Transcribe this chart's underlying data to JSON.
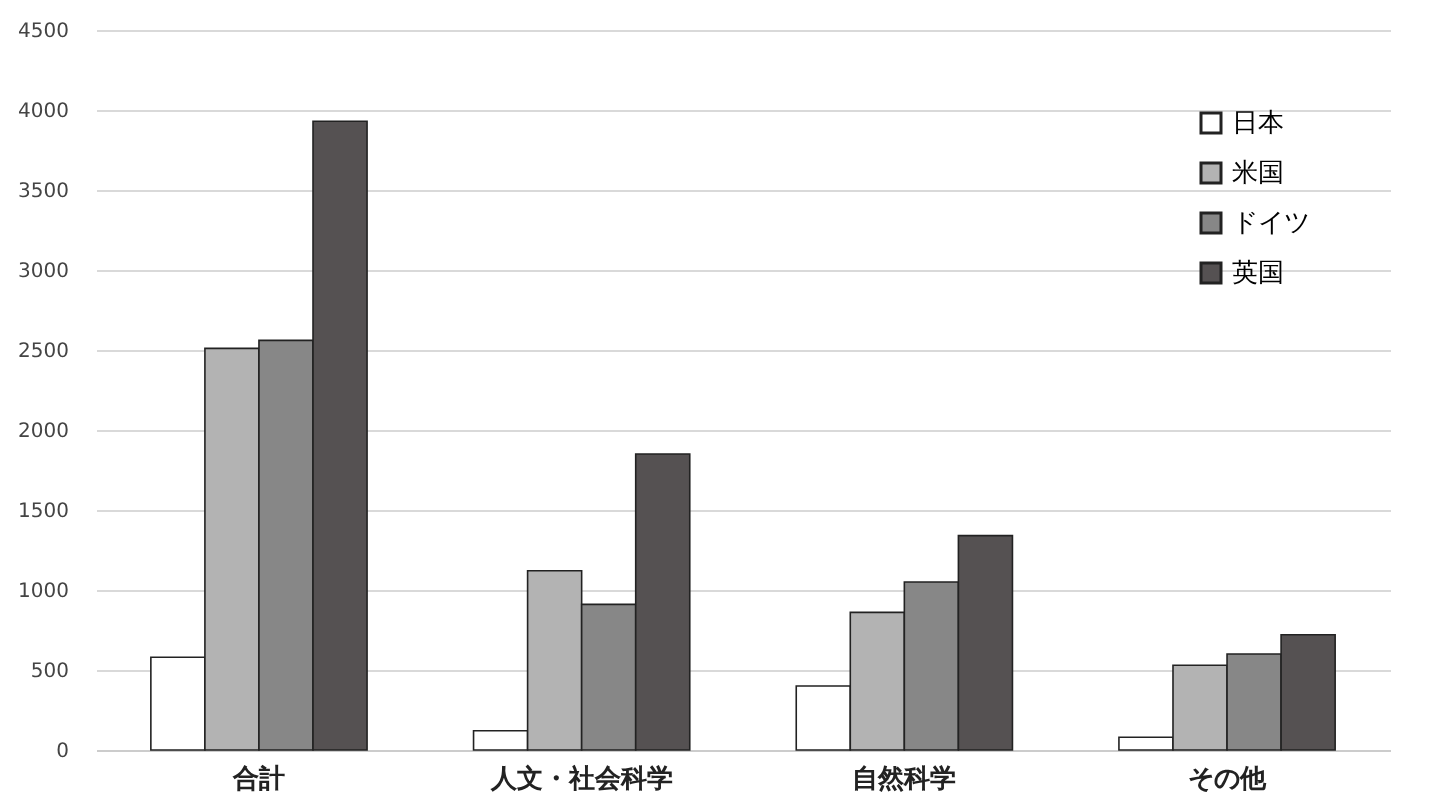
{
  "chart_data": {
    "type": "bar",
    "categories": [
      "合計",
      "人文・社会科学",
      "自然科学",
      "その他"
    ],
    "series": [
      {
        "name": "日本",
        "color": "#ffffff",
        "values": [
          580,
          120,
          400,
          80
        ]
      },
      {
        "name": "米国",
        "color": "#b3b3b3",
        "values": [
          2510,
          1120,
          860,
          530
        ]
      },
      {
        "name": "ドイツ",
        "color": "#878787",
        "values": [
          2560,
          910,
          1050,
          600
        ]
      },
      {
        "name": "英国",
        "color": "#555152",
        "values": [
          3930,
          1850,
          1340,
          720
        ]
      }
    ],
    "ylim": [
      0,
      4500
    ],
    "yticks": [
      0,
      500,
      1000,
      1500,
      2000,
      2500,
      3000,
      3500,
      4000,
      4500
    ],
    "grid": "y",
    "legend": "top right"
  }
}
